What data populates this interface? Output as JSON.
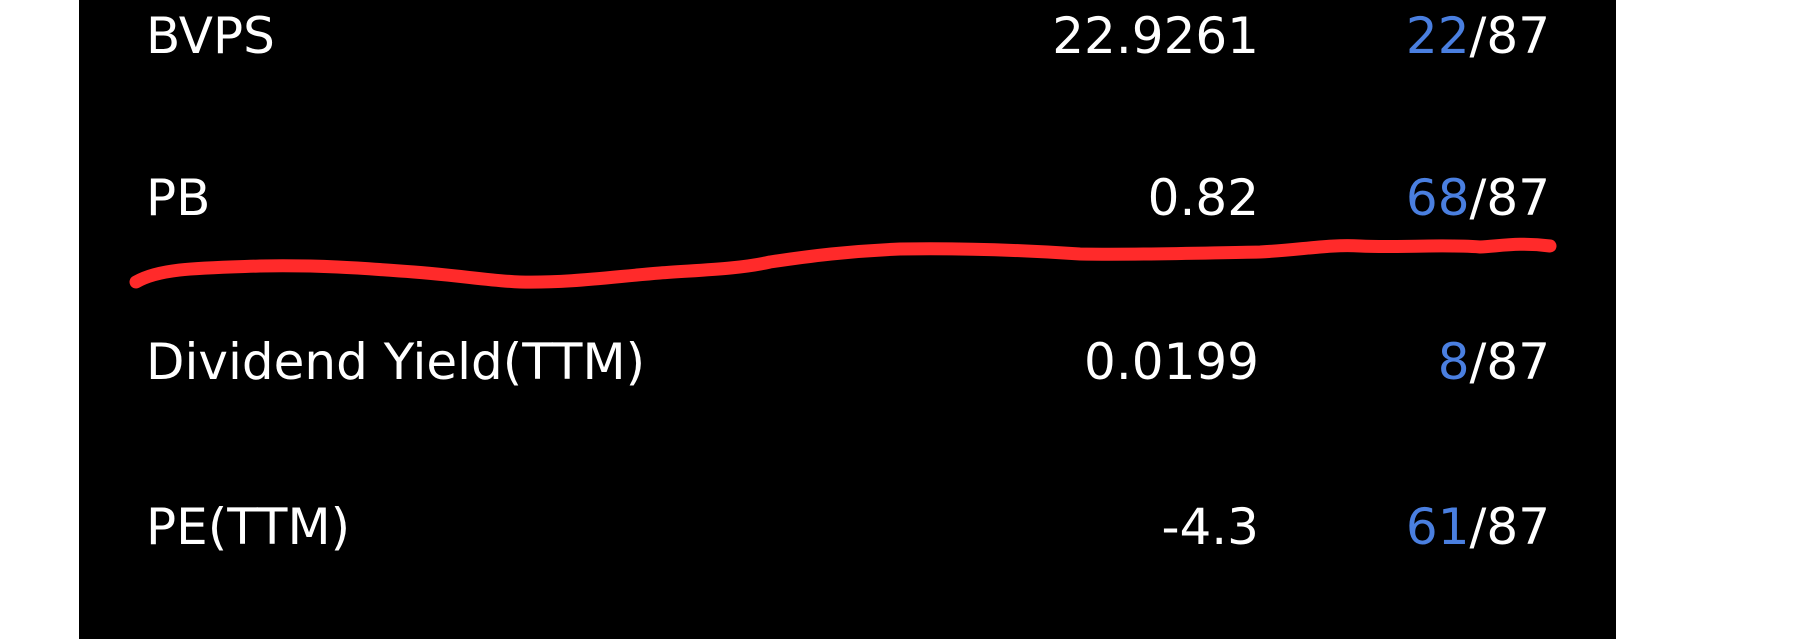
{
  "metrics": [
    {
      "name": "BVPS",
      "value": "22.9261",
      "rank": "22",
      "rank_total": "/87"
    },
    {
      "name": "PB",
      "value": "0.82",
      "rank": "68",
      "rank_total": "/87"
    },
    {
      "name": "Dividend Yield(TTM)",
      "value": "0.0199",
      "rank": "8",
      "rank_total": "/87"
    },
    {
      "name": "PE(TTM)",
      "value": "-4.3",
      "rank": "61",
      "rank_total": "/87"
    }
  ],
  "colors": {
    "background": "#000000",
    "text": "#ffffff",
    "rank_highlight": "#4a7fe0",
    "annotation": "#ff2a2a"
  }
}
